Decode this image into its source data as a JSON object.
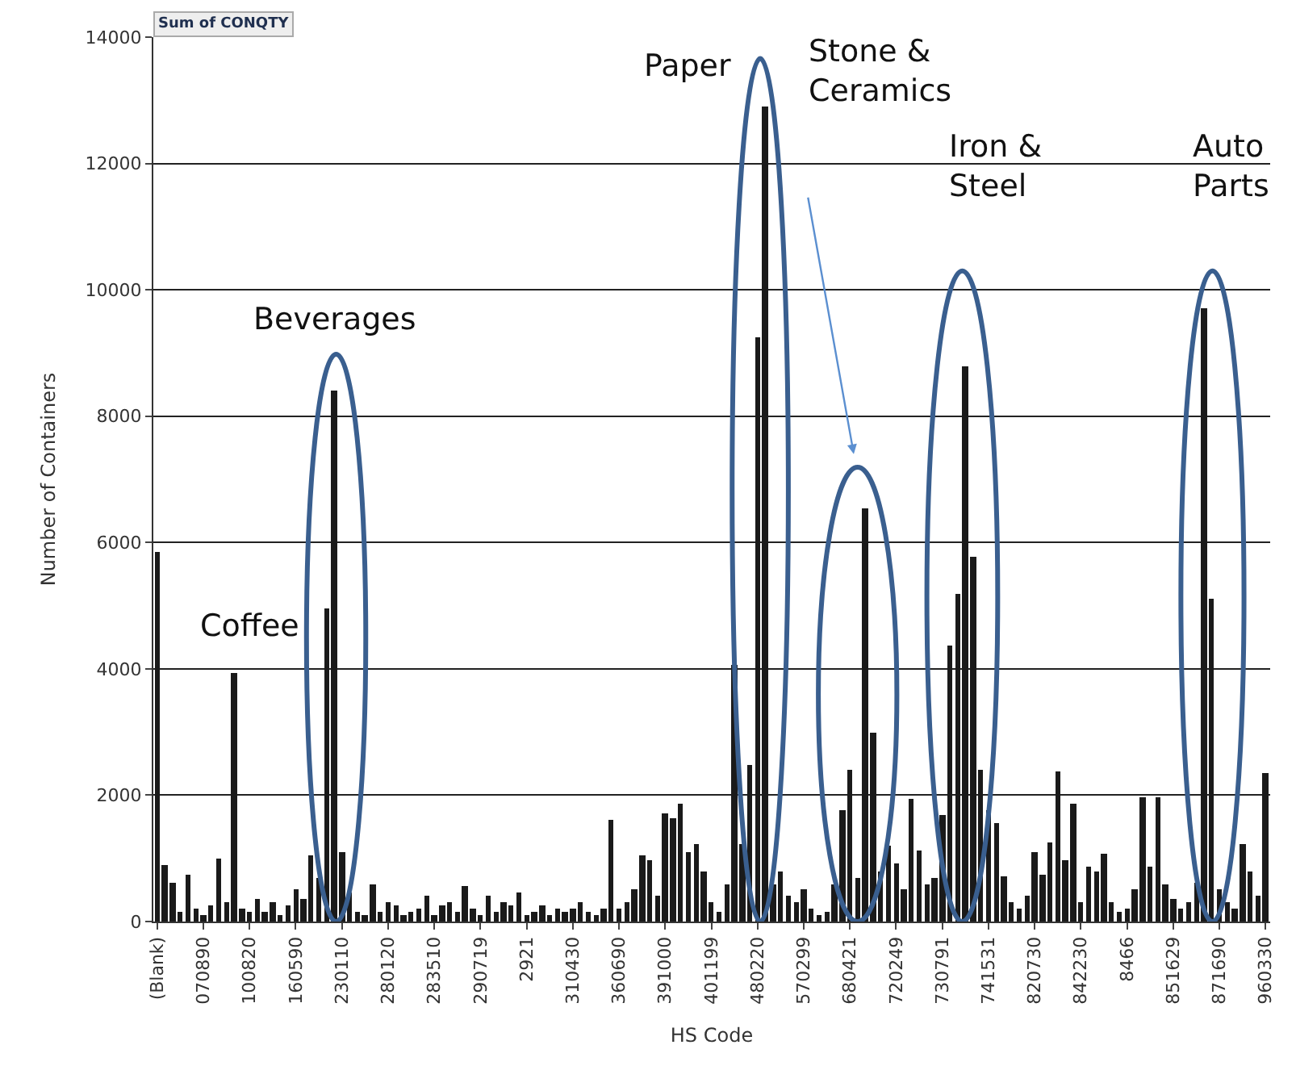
{
  "chart_data": {
    "type": "bar",
    "xlabel": "HS Code",
    "ylabel": "Number of Containers",
    "annotations": [
      "Sum of CONQTY",
      "Coffee",
      "Beverages",
      "Paper",
      "Stone & Ceramics",
      "Iron & Steel",
      "Auto Parts"
    ],
    "categories": [
      "(Blank)",
      null,
      null,
      null,
      null,
      null,
      "070890",
      null,
      null,
      null,
      null,
      null,
      "100820",
      null,
      null,
      null,
      null,
      null,
      "160590",
      null,
      null,
      null,
      null,
      null,
      "230110",
      null,
      null,
      null,
      null,
      null,
      "280120",
      null,
      null,
      null,
      null,
      null,
      "283510",
      null,
      null,
      null,
      null,
      null,
      "290719",
      null,
      null,
      null,
      null,
      null,
      "2921",
      null,
      null,
      null,
      null,
      null,
      "310430",
      null,
      null,
      null,
      null,
      null,
      "360690",
      null,
      null,
      null,
      null,
      null,
      "391000",
      null,
      null,
      null,
      null,
      null,
      "401199",
      null,
      null,
      null,
      null,
      null,
      "480220",
      null,
      null,
      null,
      null,
      null,
      "570299",
      null,
      null,
      null,
      null,
      null,
      "680421",
      null,
      null,
      null,
      null,
      null,
      "720249",
      null,
      null,
      null,
      null,
      null,
      "730791",
      null,
      null,
      null,
      null,
      null,
      "741531",
      null,
      null,
      null,
      null,
      null,
      "820730",
      null,
      null,
      null,
      null,
      null,
      "842230",
      null,
      null,
      null,
      null,
      null,
      "8466",
      null,
      null,
      null,
      null,
      null,
      "851629",
      null,
      null,
      null,
      null,
      null,
      "871690",
      null,
      null,
      null,
      null,
      null,
      "960330"
    ],
    "values": [
      5850,
      900,
      620,
      150,
      740,
      200,
      100,
      250,
      1000,
      300,
      3940,
      200,
      150,
      350,
      150,
      300,
      100,
      250,
      500,
      350,
      1050,
      700,
      4960,
      8400,
      1100,
      450,
      150,
      100,
      600,
      150,
      300,
      250,
      100,
      150,
      200,
      400,
      100,
      250,
      300,
      150,
      550,
      200,
      100,
      400,
      150,
      300,
      250,
      450,
      100,
      150,
      250,
      100,
      200,
      150,
      200,
      300,
      150,
      100,
      200,
      1610,
      200,
      300,
      500,
      1050,
      970,
      400,
      1710,
      1640,
      1870,
      1100,
      1230,
      790,
      300,
      150,
      600,
      4070,
      1230,
      2480,
      9260,
      12900,
      600,
      800,
      400,
      300,
      500,
      200,
      100,
      150,
      600,
      1760,
      2400,
      700,
      6550,
      3000,
      800,
      1200,
      920,
      500,
      1940,
      1120,
      600,
      700,
      1690,
      4370,
      5190,
      8800,
      5780,
      2400,
      1760,
      1560,
      720,
      300,
      200,
      400,
      1100,
      740,
      1250,
      2380,
      970,
      1870,
      300,
      870,
      790,
      1070,
      300,
      150,
      200,
      500,
      1970,
      870,
      1970,
      600,
      360,
      200,
      300,
      610,
      9720,
      5110,
      500,
      300,
      200,
      1230,
      790,
      400,
      2350
    ],
    "color": "#1a1a1a",
    "ylim": [
      0,
      14000
    ],
    "yticks": [
      0,
      2000,
      4000,
      6000,
      8000,
      10000,
      12000,
      14000
    ],
    "grid": "y"
  }
}
